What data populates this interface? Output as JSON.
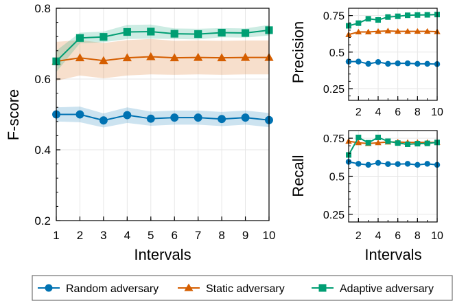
{
  "colors": {
    "random": "#0072B2",
    "static": "#D55E00",
    "adaptive": "#009E73",
    "grid": "#e6e6e6",
    "axis": "#000000"
  },
  "legend": {
    "items": [
      {
        "label": "Random adversary",
        "marker": "circle",
        "color_key": "random"
      },
      {
        "label": "Static adversary",
        "marker": "triangle",
        "color_key": "static"
      },
      {
        "label": "Adaptive adversary",
        "marker": "square",
        "color_key": "adaptive"
      }
    ],
    "placement": "bottom"
  },
  "chart_data": [
    {
      "id": "fscore",
      "type": "line",
      "xlabel": "Intervals",
      "ylabel": "F-score",
      "x": [
        1,
        2,
        3,
        4,
        5,
        6,
        7,
        8,
        9,
        10
      ],
      "xticks": [
        1,
        2,
        3,
        4,
        5,
        6,
        7,
        8,
        9,
        10
      ],
      "xlim": [
        1,
        10
      ],
      "ylim": [
        0.2,
        0.8
      ],
      "yticks": [
        0.2,
        0.4,
        0.6,
        0.8
      ],
      "ytick_labels": [
        "0.2",
        "0.4",
        "0.6",
        "0.8"
      ],
      "grid": true,
      "series": [
        {
          "name": "Random adversary",
          "color_key": "random",
          "marker": "circle",
          "values": [
            0.5,
            0.5,
            0.483,
            0.498,
            0.488,
            0.491,
            0.491,
            0.487,
            0.491,
            0.484
          ],
          "band": [
            0.02,
            0.022,
            0.02,
            0.022,
            0.02,
            0.02,
            0.02,
            0.02,
            0.02,
            0.02
          ]
        },
        {
          "name": "Static adversary",
          "color_key": "static",
          "marker": "triangle",
          "values": [
            0.65,
            0.66,
            0.652,
            0.66,
            0.663,
            0.66,
            0.661,
            0.66,
            0.661,
            0.661
          ],
          "band": [
            0.055,
            0.05,
            0.05,
            0.05,
            0.05,
            0.048,
            0.048,
            0.048,
            0.048,
            0.048
          ]
        },
        {
          "name": "Adaptive adversary",
          "color_key": "adaptive",
          "marker": "square",
          "values": [
            0.65,
            0.716,
            0.719,
            0.733,
            0.734,
            0.728,
            0.727,
            0.731,
            0.73,
            0.738
          ],
          "band": [
            0.03,
            0.015,
            0.015,
            0.02,
            0.02,
            0.015,
            0.015,
            0.013,
            0.013,
            0.015
          ]
        }
      ]
    },
    {
      "id": "precision",
      "type": "line",
      "xlabel": "",
      "ylabel": "Precision",
      "x": [
        1,
        2,
        3,
        4,
        5,
        6,
        7,
        8,
        9,
        10
      ],
      "xticks": [
        2,
        4,
        6,
        8,
        10
      ],
      "xlim": [
        1,
        10
      ],
      "ylim": [
        0.17,
        0.8
      ],
      "yticks": [
        0.25,
        0.5,
        0.75
      ],
      "ytick_labels": [
        "0.25",
        "0.5",
        "0.75"
      ],
      "grid": true,
      "series": [
        {
          "name": "Random adversary",
          "color_key": "random",
          "marker": "circle",
          "values": [
            0.435,
            0.435,
            0.42,
            0.432,
            0.42,
            0.423,
            0.423,
            0.42,
            0.42,
            0.418
          ]
        },
        {
          "name": "Static adversary",
          "color_key": "static",
          "marker": "triangle",
          "values": [
            0.62,
            0.638,
            0.638,
            0.642,
            0.645,
            0.642,
            0.642,
            0.642,
            0.642,
            0.64
          ]
        },
        {
          "name": "Adaptive adversary",
          "color_key": "adaptive",
          "marker": "square",
          "values": [
            0.68,
            0.698,
            0.728,
            0.72,
            0.74,
            0.745,
            0.752,
            0.754,
            0.755,
            0.757
          ]
        }
      ]
    },
    {
      "id": "recall",
      "type": "line",
      "xlabel": "Intervals",
      "ylabel": "Recall",
      "x": [
        1,
        2,
        3,
        4,
        5,
        6,
        7,
        8,
        9,
        10
      ],
      "xticks": [
        2,
        4,
        6,
        8,
        10
      ],
      "xlim": [
        1,
        10
      ],
      "ylim": [
        0.2,
        0.8
      ],
      "yticks": [
        0.25,
        0.5,
        0.75
      ],
      "ytick_labels": [
        "0.25",
        "0.5",
        "0.75"
      ],
      "grid": true,
      "series": [
        {
          "name": "Random adversary",
          "color_key": "random",
          "marker": "circle",
          "values": [
            0.595,
            0.582,
            0.575,
            0.588,
            0.58,
            0.58,
            0.582,
            0.575,
            0.582,
            0.575
          ]
        },
        {
          "name": "Static adversary",
          "color_key": "static",
          "marker": "triangle",
          "values": [
            0.73,
            0.72,
            0.715,
            0.72,
            0.725,
            0.725,
            0.722,
            0.722,
            0.722,
            0.722
          ]
        },
        {
          "name": "Adaptive adversary",
          "color_key": "adaptive",
          "marker": "square",
          "values": [
            0.64,
            0.755,
            0.72,
            0.755,
            0.73,
            0.718,
            0.71,
            0.714,
            0.716,
            0.722
          ]
        }
      ]
    }
  ]
}
